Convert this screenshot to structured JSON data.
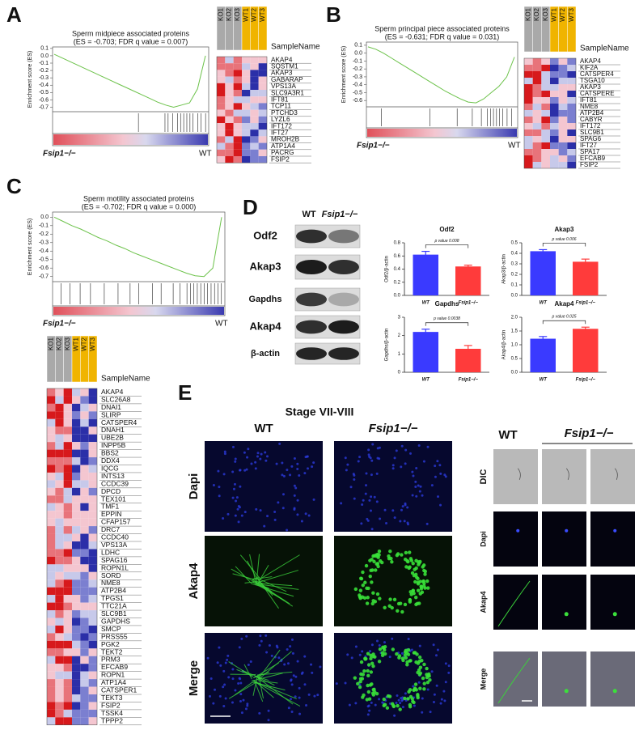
{
  "panel_labels": [
    "A",
    "B",
    "C",
    "D",
    "E"
  ],
  "chart_data": [
    {
      "type": "line",
      "title": "Sperm midpiece associated proteins",
      "subtitle": "(ES = -0.703; FDR q value = 0.007)",
      "ylabel": "Enrichment score (ES)",
      "color": "#6cc24a",
      "values": [
        0.02,
        -0.03,
        -0.08,
        -0.13,
        -0.18,
        -0.23,
        -0.28,
        -0.33,
        -0.38,
        -0.43,
        -0.48,
        -0.53,
        -0.58,
        -0.63,
        -0.67,
        -0.7,
        -0.67,
        -0.64,
        -0.45,
        0.0
      ],
      "ylim": [
        -0.76,
        0.12
      ],
      "yticks": [
        0.1,
        {
          "value": 0,
          "label": "0.0"
        },
        -0.1,
        -0.2,
        -0.3,
        -0.4,
        -0.5,
        -0.6,
        -0.7
      ],
      "left_label": "Fsip1−/−",
      "right_label": "WT"
    },
    {
      "type": "line",
      "title": "Sperm principal piece associated proteins",
      "subtitle": "(ES = -0.631; FDR q value = 0.031)",
      "ylabel": "Enrichment score (ES)",
      "color": "#6cc24a",
      "values": [
        0.08,
        0.05,
        0.0,
        -0.06,
        -0.12,
        -0.18,
        -0.24,
        -0.3,
        -0.36,
        -0.42,
        -0.48,
        -0.53,
        -0.58,
        -0.62,
        -0.63,
        -0.58,
        -0.5,
        -0.42,
        -0.3,
        -0.05
      ],
      "ylim": [
        -0.68,
        0.14
      ],
      "yticks": [
        0.1,
        {
          "value": 0,
          "label": "0.0"
        },
        -0.1,
        -0.2,
        -0.3,
        -0.4,
        -0.5,
        -0.6
      ],
      "left_label": "Fsip1−/−",
      "right_label": "WT"
    },
    {
      "type": "line",
      "title": "Sperm motility associated proteins",
      "subtitle": "(ES = -0.702; FDR q value = 0.000)",
      "ylabel": "Enrichment score (ES)",
      "color": "#6cc24a",
      "values": [
        0.0,
        -0.05,
        -0.1,
        -0.14,
        -0.19,
        -0.24,
        -0.28,
        -0.33,
        -0.37,
        -0.42,
        -0.46,
        -0.5,
        -0.54,
        -0.58,
        -0.62,
        -0.66,
        -0.69,
        -0.7,
        -0.6,
        0.0
      ],
      "ylim": [
        -0.76,
        0.06
      ],
      "yticks": [
        {
          "value": 0,
          "label": "0.0"
        },
        -0.1,
        -0.2,
        -0.3,
        -0.4,
        -0.5,
        -0.6,
        -0.7
      ],
      "left_label": "Fsip1−/−",
      "right_label": "WT"
    },
    {
      "type": "bar",
      "title": "Odf2",
      "ylabel": "Odf2/β-actin",
      "categories": [
        "WT",
        "Fsip1−/−"
      ],
      "values": [
        0.62,
        0.44
      ],
      "errors": [
        0.05,
        0.02
      ],
      "colors": [
        "#3a3aff",
        "#ff3b3b"
      ],
      "ylim": [
        0,
        0.8
      ],
      "yticks": [
        {
          "value": 0,
          "label": "0.0"
        },
        0.2,
        0.4,
        0.6,
        0.8
      ],
      "annotation": "p value 0.008"
    },
    {
      "type": "bar",
      "title": "Akap3",
      "ylabel": "Akap3/β-actin",
      "categories": [
        "WT",
        "Fsip1−/−"
      ],
      "values": [
        0.42,
        0.32
      ],
      "errors": [
        0.015,
        0.025
      ],
      "colors": [
        "#3a3aff",
        "#ff3b3b"
      ],
      "ylim": [
        0,
        0.5
      ],
      "yticks": [
        {
          "value": 0,
          "label": "0.0"
        },
        0.1,
        0.2,
        0.3,
        0.4,
        0.5
      ],
      "annotation": "p value 0.006"
    },
    {
      "type": "bar",
      "title": "Gapdhs",
      "ylabel": "Gapdhs/β-actin",
      "categories": [
        "WT",
        "Fsip1−/−"
      ],
      "values": [
        2.2,
        1.28
      ],
      "errors": [
        0.15,
        0.18
      ],
      "colors": [
        "#3a3aff",
        "#ff3b3b"
      ],
      "ylim": [
        0,
        3
      ],
      "yticks": [
        0,
        1,
        2,
        3
      ],
      "annotation": "p value 0.0038"
    },
    {
      "type": "bar",
      "title": "Akap4",
      "ylabel": "Akap4/β-actin",
      "categories": [
        "WT",
        "Fsip1−/−"
      ],
      "values": [
        1.22,
        1.58
      ],
      "errors": [
        0.08,
        0.06
      ],
      "colors": [
        "#3a3aff",
        "#ff3b3b"
      ],
      "ylim": [
        0,
        2
      ],
      "yticks": [
        {
          "value": 0,
          "label": "0.0"
        },
        0.5,
        {
          "value": 1,
          "label": "1.0"
        },
        1.5,
        {
          "value": 2,
          "label": "2.0"
        }
      ],
      "annotation": "p value 0.025"
    }
  ],
  "heatmaps": [
    {
      "samples": [
        "KO1",
        "KO2",
        "KO3",
        "WT1",
        "WT2",
        "WT3"
      ],
      "row_header": "SampleName",
      "genes": [
        "AKAP4",
        "SQSTM1",
        "AKAP3",
        "GABARAP",
        "VPS13A",
        "SLC9A3R1",
        "IFT81",
        "TCP11",
        "PTCHD3",
        "LYZL6",
        "IFT172",
        "IFT27",
        "MROH2B",
        "ATP1A4",
        "PACRG",
        "FSIP2"
      ]
    },
    {
      "samples": [
        "KO1",
        "KO2",
        "KO3",
        "WT1",
        "WT2",
        "WT3"
      ],
      "row_header": "SampleName",
      "genes": [
        "AKAP4",
        "KIF2A",
        "CATSPER4",
        "TSGA10",
        "AKAP3",
        "CATSPERE",
        "IFT81",
        "NME8",
        "ATP2B4",
        "CABYR",
        "IFT172",
        "SLC9B1",
        "SPAG6",
        "IFT27",
        "SPA17",
        "EFCAB9",
        "FSIP2"
      ]
    },
    {
      "samples": [
        "KO1",
        "KO2",
        "KO3",
        "WT1",
        "WT2",
        "WT3"
      ],
      "row_header": "SampleName",
      "genes": [
        "AKAP4",
        "SLC26A8",
        "DNAI1",
        "SLIRP",
        "CATSPER4",
        "DNAH1",
        "UBE2B",
        "INPP5B",
        "BBS2",
        "DDX4",
        "IQCG",
        "INTS13",
        "CCDC39",
        "DPCD",
        "TEX101",
        "TMF1",
        "EPPIN",
        "CFAP157",
        "DRC7",
        "CCDC40",
        "VPS13A",
        "LDHC",
        "SPAG16",
        "ROPN1L",
        "SORD",
        "NME8",
        "ATP2B4",
        "TPGS1",
        "TTC21A",
        "SLC9B1",
        "GAPDHS",
        "SMCP",
        "PRSS55",
        "PGK2",
        "TEKT2",
        "PRM3",
        "EFCAB9",
        "ROPN1",
        "ATP1A4",
        "CATSPER1",
        "TEKT3",
        "FSIP2",
        "TSSK4",
        "TPPP2"
      ]
    }
  ],
  "blot": {
    "columns": [
      "WT",
      "Fsip1−/−"
    ],
    "rows": [
      "Odf2",
      "Akap3",
      "Gapdhs",
      "Akap4",
      "β-actin"
    ]
  },
  "imaging": {
    "stage": "Stage VII-VIII",
    "left_columns": [
      "WT",
      "Fsip1−/−"
    ],
    "left_rows": [
      "Dapi",
      "Akap4",
      "Merge"
    ],
    "right_columns": [
      "WT",
      "Fsip1−/−"
    ],
    "right_rows": [
      "DIC",
      "Dapi",
      "Akap4",
      "Merge"
    ]
  }
}
